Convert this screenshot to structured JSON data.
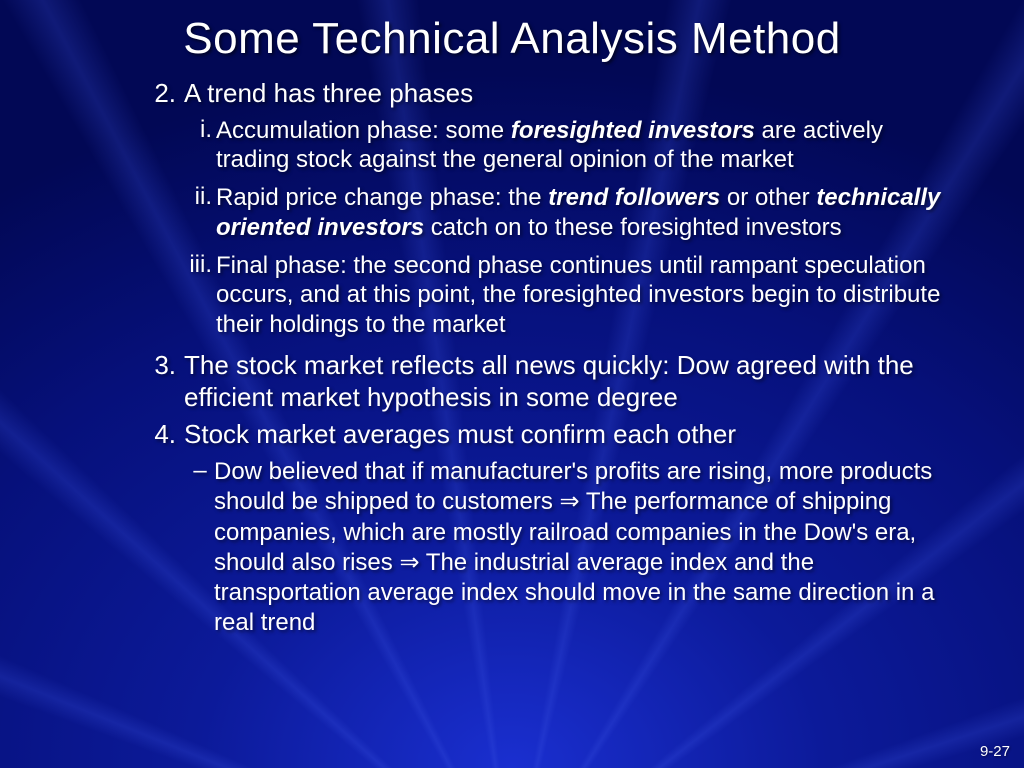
{
  "title": "Some Technical Analysis Method",
  "items": [
    {
      "num": "2.",
      "text": "A trend has three phases",
      "subs": [
        {
          "roman": "i.",
          "pre": "Accumulation phase: some ",
          "em": "foresighted investors",
          "post": " are actively trading stock against the general opinion of the market"
        },
        {
          "roman": "ii.",
          "pre": "Rapid price change phase: the ",
          "em": "trend followers",
          "mid": " or other ",
          "em2": "technically oriented investors",
          "post": " catch on to these foresighted investors"
        },
        {
          "roman": "iii.",
          "pre": "Final phase: the second phase continues until rampant speculation occurs, and at this point, the foresighted investors begin to distribute their holdings to the market"
        }
      ]
    },
    {
      "num": "3.",
      "text": "The stock market reflects all news quickly: Dow agreed with the efficient market hypothesis in some degree"
    },
    {
      "num": "4.",
      "text": "Stock market averages must confirm each other",
      "dashes": [
        {
          "pre": "Dow believed that if manufacturer's profits are rising, more products should be shipped to customers ",
          "arr1": "⇒",
          "mid": " The performance of shipping companies, which are mostly railroad companies in the Dow's era, should also rises ",
          "arr2": "⇒",
          "post": " The industrial average index and the transportation average index should move in the same direction in a real trend"
        }
      ]
    }
  ],
  "page": "9-27",
  "colors": {
    "text": "#ffffff"
  }
}
